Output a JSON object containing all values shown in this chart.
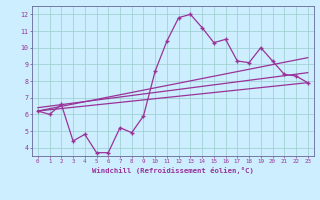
{
  "xlabel": "Windchill (Refroidissement éolien,°C)",
  "bg_color": "#cceeff",
  "line_color": "#993399",
  "grid_color": "#99cccc",
  "xlim": [
    -0.5,
    23.5
  ],
  "ylim": [
    3.5,
    12.5
  ],
  "xticks": [
    0,
    1,
    2,
    3,
    4,
    5,
    6,
    7,
    8,
    9,
    10,
    11,
    12,
    13,
    14,
    15,
    16,
    17,
    18,
    19,
    20,
    21,
    22,
    23
  ],
  "yticks": [
    4,
    5,
    6,
    7,
    8,
    9,
    10,
    11,
    12
  ],
  "series1_x": [
    0,
    1,
    2,
    3,
    4,
    5,
    6,
    7,
    8,
    9,
    10,
    11,
    12,
    13,
    14,
    15,
    16,
    17,
    18,
    19,
    20,
    21,
    22,
    23
  ],
  "series1_y": [
    6.2,
    6.0,
    6.6,
    4.4,
    4.8,
    3.7,
    3.7,
    5.2,
    4.9,
    5.9,
    8.6,
    10.4,
    11.8,
    12.0,
    11.2,
    10.3,
    10.5,
    9.2,
    9.1,
    10.0,
    9.2,
    8.4,
    8.3,
    7.9
  ],
  "series2_x": [
    0,
    23
  ],
  "series2_y": [
    6.2,
    7.9
  ],
  "series3_x": [
    0,
    23
  ],
  "series3_y": [
    6.4,
    8.5
  ],
  "series4_x": [
    0,
    23
  ],
  "series4_y": [
    6.2,
    9.4
  ]
}
